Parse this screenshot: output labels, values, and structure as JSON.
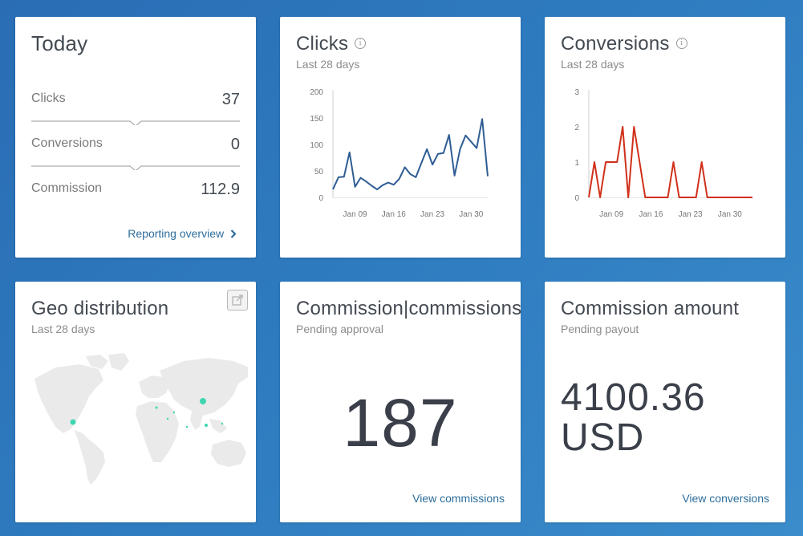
{
  "today": {
    "title": "Today",
    "rows": [
      {
        "label": "Clicks",
        "value": "37"
      },
      {
        "label": "Conversions",
        "value": "0"
      },
      {
        "label": "Commission",
        "value": "112.9"
      }
    ],
    "link": "Reporting overview"
  },
  "clicks": {
    "title": "Clicks",
    "subtitle": "Last 28 days",
    "chart_data": {
      "type": "line",
      "x": [
        "Jan 05",
        "Jan 06",
        "Jan 07",
        "Jan 08",
        "Jan 09",
        "Jan 10",
        "Jan 11",
        "Jan 12",
        "Jan 13",
        "Jan 14",
        "Jan 15",
        "Jan 16",
        "Jan 17",
        "Jan 18",
        "Jan 19",
        "Jan 20",
        "Jan 21",
        "Jan 22",
        "Jan 23",
        "Jan 24",
        "Jan 25",
        "Jan 26",
        "Jan 27",
        "Jan 28",
        "Jan 29",
        "Jan 30",
        "Jan 31",
        "Feb 01",
        "Feb 02"
      ],
      "values": [
        15,
        38,
        39,
        85,
        20,
        37,
        30,
        22,
        15,
        23,
        28,
        24,
        35,
        57,
        44,
        38,
        65,
        91,
        62,
        82,
        84,
        118,
        41,
        91,
        117,
        105,
        93,
        148,
        40
      ],
      "yticks": [
        "0",
        "50",
        "100",
        "150",
        "200"
      ],
      "ylim": [
        0,
        200
      ],
      "xticks": [
        "Jan 09",
        "Jan 16",
        "Jan 23",
        "Jan 30"
      ],
      "color": "#2f5d94"
    }
  },
  "conversions": {
    "title": "Conversions",
    "subtitle": "Last 28 days",
    "chart_data": {
      "type": "line",
      "x": [
        "Jan 05",
        "Jan 06",
        "Jan 07",
        "Jan 08",
        "Jan 09",
        "Jan 10",
        "Jan 11",
        "Jan 12",
        "Jan 13",
        "Jan 14",
        "Jan 15",
        "Jan 16",
        "Jan 17",
        "Jan 18",
        "Jan 19",
        "Jan 20",
        "Jan 21",
        "Jan 22",
        "Jan 23",
        "Jan 24",
        "Jan 25",
        "Jan 26",
        "Jan 27",
        "Jan 28",
        "Jan 29",
        "Jan 30",
        "Jan 31",
        "Feb 01",
        "Feb 02",
        "Feb 03"
      ],
      "values": [
        0,
        1,
        0,
        1,
        1,
        1,
        2,
        0,
        2,
        1,
        0,
        0,
        0,
        0,
        0,
        1,
        0,
        0,
        0,
        0,
        1,
        0,
        0,
        0,
        0,
        0,
        0,
        0,
        0,
        0
      ],
      "yticks": [
        "0",
        "1",
        "2",
        "3"
      ],
      "ylim": [
        0,
        3
      ],
      "xticks": [
        "Jan 09",
        "Jan 16",
        "Jan 23",
        "Jan 30"
      ],
      "color": "#d0301a"
    }
  },
  "geo": {
    "title": "Geo distribution",
    "subtitle": "Last 28 days",
    "export_icon": "external-link-icon"
  },
  "commissions": {
    "title": "Commission|commissions",
    "subtitle": "Pending approval",
    "value": "187",
    "link": "View commissions"
  },
  "amount": {
    "title": "Commission amount",
    "subtitle": "Pending payout",
    "value_line1": "4100.36",
    "value_line2": "USD",
    "link": "View conversions"
  }
}
